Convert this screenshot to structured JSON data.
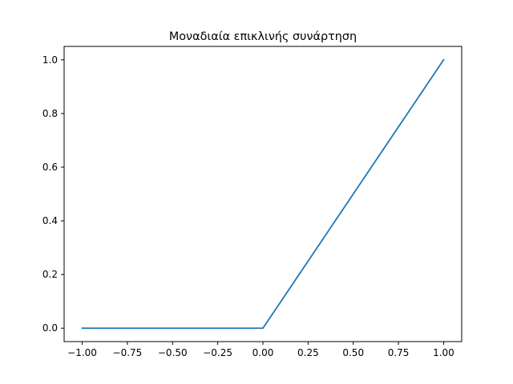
{
  "chart_data": {
    "type": "line",
    "title": "Μοναδιαία επικλινής συνάρτηση",
    "xlabel": "",
    "ylabel": "",
    "xlim": [
      -1.1,
      1.1
    ],
    "ylim": [
      -0.05,
      1.05
    ],
    "grid": false,
    "x_ticks": [
      -1.0,
      -0.75,
      -0.5,
      -0.25,
      0.0,
      0.25,
      0.5,
      0.75,
      1.0
    ],
    "x_tick_labels": [
      "−1.00",
      "−0.75",
      "−0.50",
      "−0.25",
      "0.00",
      "0.25",
      "0.50",
      "0.75",
      "1.00"
    ],
    "y_ticks": [
      0.0,
      0.2,
      0.4,
      0.6,
      0.8,
      1.0
    ],
    "y_tick_labels": [
      "0.0",
      "0.2",
      "0.4",
      "0.6",
      "0.8",
      "1.0"
    ],
    "series": [
      {
        "color": "#1f77b4",
        "x": [
          -1.0,
          -0.01,
          0.0,
          0.01,
          0.02,
          1.0
        ],
        "y": [
          0.0,
          0.0,
          0.0,
          0.01,
          0.02,
          1.0
        ]
      }
    ]
  }
}
